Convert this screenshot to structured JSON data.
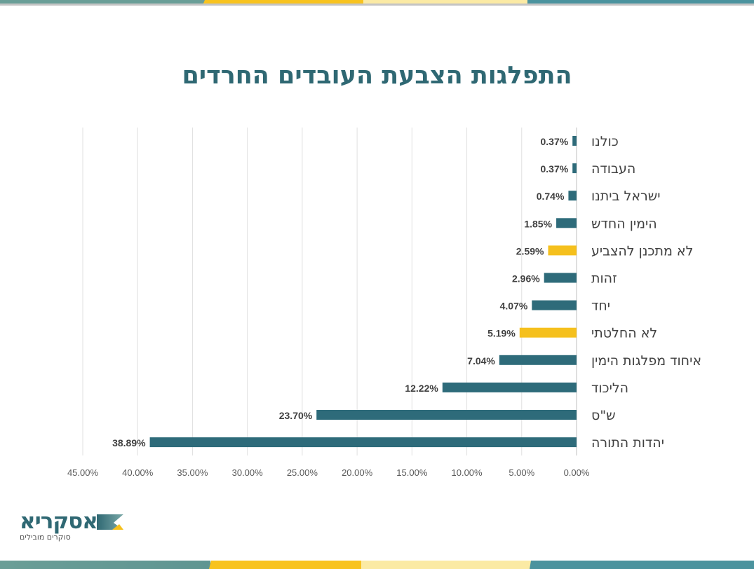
{
  "title": "התפלגות הצבעת העובדים החרדים",
  "logo": {
    "name": "אסקריא",
    "tagline": "סוקרים מובילים"
  },
  "colors": {
    "teal": "#2e6b7a",
    "yellow": "#f5c01d",
    "title": "#2f6873"
  },
  "chart_data": {
    "type": "bar",
    "orientation": "horizontal",
    "title": "התפלגות הצבעת העובדים החרדים",
    "categories": [
      "כולנו",
      "העבודה",
      "ישראל ביתנו",
      "הימין החדש",
      "לא מתכנן להצביע",
      "זהות",
      "יחד",
      "לא החלטתי",
      "איחוד מפלגות הימין",
      "הליכוד",
      "ש\"ס",
      "יהדות התורה"
    ],
    "values": [
      0.37,
      0.37,
      0.74,
      1.85,
      2.59,
      2.96,
      4.07,
      5.19,
      7.04,
      12.22,
      23.7,
      38.89
    ],
    "data_labels": [
      "0.37%",
      "0.37%",
      "0.74%",
      "1.85%",
      "2.59%",
      "2.96%",
      "4.07%",
      "5.19%",
      "7.04%",
      "12.22%",
      "23.70%",
      "38.89%"
    ],
    "bar_colors": [
      "#2e6b7a",
      "#2e6b7a",
      "#2e6b7a",
      "#2e6b7a",
      "#f5c01d",
      "#2e6b7a",
      "#2e6b7a",
      "#f5c01d",
      "#2e6b7a",
      "#2e6b7a",
      "#2e6b7a",
      "#2e6b7a"
    ],
    "x_ticks": [
      "0.00%",
      "5.00%",
      "10.00%",
      "15.00%",
      "20.00%",
      "25.00%",
      "30.00%",
      "35.00%",
      "40.00%",
      "45.00%"
    ],
    "xlim": [
      0,
      45
    ],
    "x_reversed": true,
    "grid": true,
    "legend": "none"
  }
}
